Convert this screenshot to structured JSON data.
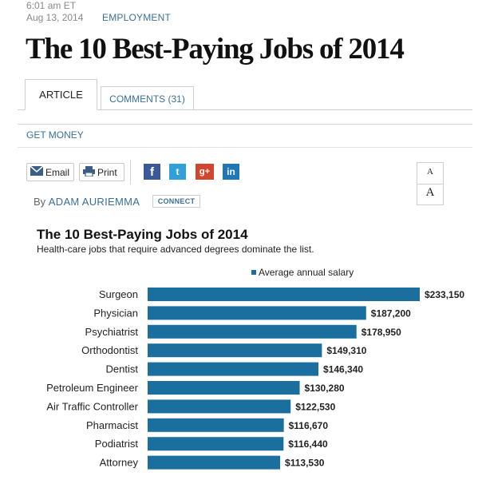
{
  "meta": {
    "time": "6:01 am ET",
    "date": "Aug 13, 2014",
    "category": "EMPLOYMENT"
  },
  "headline": "The 10 Best-Paying Jobs of 2014",
  "tabs": {
    "article": "ARTICLE",
    "comments": "COMMENTS (31)"
  },
  "section": "GET MONEY",
  "share": {
    "email": "Email",
    "print": "Print",
    "facebook": "f",
    "twitter": "t",
    "googleplus": "g+",
    "linkedin": "in"
  },
  "font_size_controls": {
    "small": "A",
    "large": "A"
  },
  "byline": {
    "prefix": "By",
    "author": "ADAM AURIEMMA",
    "connect": "CONNECT"
  },
  "colors": {
    "bar": "#1a6f9e",
    "link": "#3a6f9a"
  },
  "chart_data": {
    "type": "bar",
    "orientation": "horizontal",
    "title": "The 10 Best-Paying Jobs of 2014",
    "subtitle": "Health-care jobs that require advanced degrees dominate the list.",
    "legend": "Average annual salary",
    "legend_position": "top-right",
    "grid": false,
    "xlim": [
      0,
      233150
    ],
    "categories": [
      "Surgeon",
      "Physician",
      "Psychiatrist",
      "Orthodontist",
      "Dentist",
      "Petroleum Engineer",
      "Air Traffic Controller",
      "Pharmacist",
      "Podiatrist",
      "Attorney"
    ],
    "values": [
      233150,
      187200,
      178950,
      149310,
      146340,
      130280,
      122530,
      116670,
      116440,
      113530
    ],
    "value_labels": [
      "$233,150",
      "$187,200",
      "$178,950",
      "$149,310",
      "$146,340",
      "$130,280",
      "$122,530",
      "$116,670",
      "$116,440",
      "$113,530"
    ]
  }
}
